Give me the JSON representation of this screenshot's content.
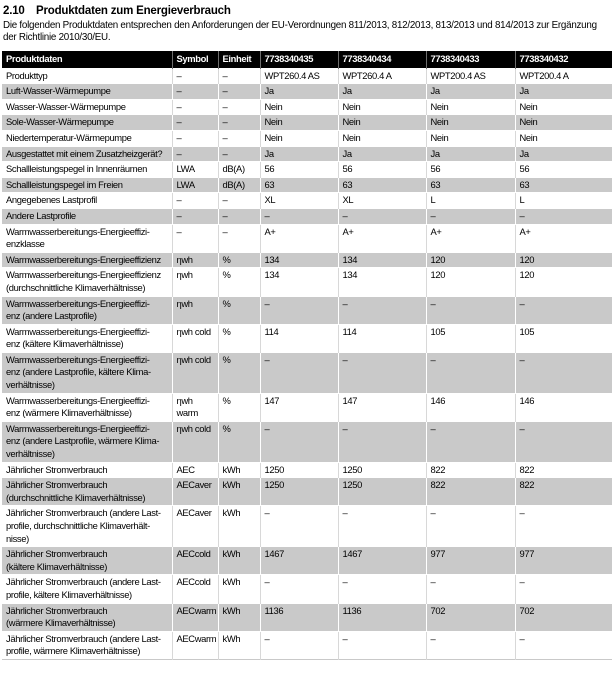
{
  "page": {
    "section_number": "2.10",
    "section_title": "Produktdaten zum Energieverbrauch",
    "intro": "Die folgenden Produktdaten entsprechen den Anforderungen der EU-Verordnungen 811/2013, 812/2013, 813/2013 und 814/2013 zur Ergänzung der Richtlinie 2010/30/EU."
  },
  "colors": {
    "header_bg": "#000000",
    "shaded_row_bg": "#c9c9c9",
    "plain_row_bg": "#ffffff",
    "text": "#000000"
  },
  "table": {
    "headers": [
      "Produktdaten",
      "Symbol",
      "Einheit",
      "7738340435",
      "7738340434",
      "7738340433",
      "7738340432"
    ],
    "rows": [
      {
        "label": "Produkttyp",
        "symbol": "–",
        "unit": "–",
        "values": [
          "WPT260.4 AS",
          "WPT260.4 A",
          "WPT200.4 AS",
          "WPT200.4 A"
        ]
      },
      {
        "label": "Luft-Wasser-Wärmepumpe",
        "symbol": "–",
        "unit": "–",
        "values": [
          "Ja",
          "Ja",
          "Ja",
          "Ja"
        ]
      },
      {
        "label": "Wasser-Wasser-Wärmepumpe",
        "symbol": "–",
        "unit": "–",
        "values": [
          "Nein",
          "Nein",
          "Nein",
          "Nein"
        ]
      },
      {
        "label": "Sole-Wasser-Wärmepumpe",
        "symbol": "–",
        "unit": "–",
        "values": [
          "Nein",
          "Nein",
          "Nein",
          "Nein"
        ]
      },
      {
        "label": "Niedertemperatur-Wärmepumpe",
        "symbol": "–",
        "unit": "–",
        "values": [
          "Nein",
          "Nein",
          "Nein",
          "Nein"
        ]
      },
      {
        "label": "Ausgestattet mit einem Zusatzheizgerät?",
        "symbol": "–",
        "unit": "–",
        "values": [
          "Ja",
          "Ja",
          "Ja",
          "Ja"
        ]
      },
      {
        "label": "Schallleistungspegel in Innenräumen",
        "symbol": "LWA",
        "unit": "dB(A)",
        "values": [
          "56",
          "56",
          "56",
          "56"
        ]
      },
      {
        "label": "Schallleistungspegel im Freien",
        "symbol": "LWA",
        "unit": "dB(A)",
        "values": [
          "63",
          "63",
          "63",
          "63"
        ]
      },
      {
        "label": "Angegebenes Lastprofil",
        "symbol": "–",
        "unit": "–",
        "values": [
          "XL",
          "XL",
          "L",
          "L"
        ]
      },
      {
        "label": "Andere Lastprofile",
        "symbol": "–",
        "unit": "–",
        "values": [
          "–",
          "–",
          "–",
          "–"
        ]
      },
      {
        "label": "Warmwasserbereitungs-Energieeffizi-\nenzklasse",
        "symbol": "–",
        "unit": "–",
        "values": [
          "A+",
          "A+",
          "A+",
          "A+"
        ]
      },
      {
        "label": "Warmwasserbereitungs-Energieeffizienz",
        "symbol": "ηwh",
        "unit": "%",
        "values": [
          "134",
          "134",
          "120",
          "120"
        ]
      },
      {
        "label": "Warmwasserbereitungs-Energieeffizienz\n(durchschnittliche Klimaverhältnisse)",
        "symbol": "ηwh",
        "unit": "%",
        "values": [
          "134",
          "134",
          "120",
          "120"
        ]
      },
      {
        "label": "Warmwasserbereitungs-Energieeffizi-\nenz (andere Lastprofile)",
        "symbol": "ηwh",
        "unit": "%",
        "values": [
          "–",
          "–",
          "–",
          "–"
        ]
      },
      {
        "label": "Warmwasserbereitungs-Energieeffizi-\nenz (kältere Klimaverhältnisse)",
        "symbol": "ηwh cold",
        "unit": "%",
        "values": [
          "114",
          "114",
          "105",
          "105"
        ]
      },
      {
        "label": "Warmwasserbereitungs-Energieeffizi-\nenz (andere Lastprofile, kältere Klima-\nverhältnisse)",
        "symbol": "ηwh cold",
        "unit": "%",
        "values": [
          "–",
          "–",
          "–",
          "–"
        ]
      },
      {
        "label": "Warmwasserbereitungs-Energieeffizi-\nenz (wärmere Klimaverhältnisse)",
        "symbol": "ηwh warm",
        "unit": "%",
        "values": [
          "147",
          "147",
          "146",
          "146"
        ]
      },
      {
        "label": "Warmwasserbereitungs-Energieeffizi-\nenz (andere Lastprofile, wärmere Klima-\nverhältnisse)",
        "symbol": "ηwh cold",
        "unit": "%",
        "values": [
          "–",
          "–",
          "–",
          "–"
        ]
      },
      {
        "label": "Jährlicher Stromverbrauch",
        "symbol": "AEC",
        "unit": "kWh",
        "values": [
          "1250",
          "1250",
          "822",
          "822"
        ]
      },
      {
        "label": "Jährlicher Stromverbrauch\n(durchschnittliche Klimaverhältnisse)",
        "symbol": "AECaver",
        "unit": "kWh",
        "values": [
          "1250",
          "1250",
          "822",
          "822"
        ]
      },
      {
        "label": "Jährlicher Stromverbrauch (andere Last-\nprofile, durchschnittliche Klimaverhält-\nnisse)",
        "symbol": "AECaver",
        "unit": "kWh",
        "values": [
          "–",
          "–",
          "–",
          "–"
        ]
      },
      {
        "label": "Jährlicher Stromverbrauch\n(kältere Klimaverhältnisse)",
        "symbol": "AECcold",
        "unit": "kWh",
        "values": [
          "1467",
          "1467",
          "977",
          "977"
        ]
      },
      {
        "label": "Jährlicher Stromverbrauch (andere Last-\nprofile, kältere Klimaverhältnisse)",
        "symbol": "AECcold",
        "unit": "kWh",
        "values": [
          "–",
          "–",
          "–",
          "–"
        ]
      },
      {
        "label": "Jährlicher Stromverbrauch\n(wärmere Klimaverhältnisse)",
        "symbol": "AECwarm",
        "unit": "kWh",
        "values": [
          "1136",
          "1136",
          "702",
          "702"
        ]
      },
      {
        "label": "Jährlicher Stromverbrauch (andere Last-\nprofile, wärmere Klimaverhältnisse)",
        "symbol": "AECwarm",
        "unit": "kWh",
        "values": [
          "–",
          "–",
          "–",
          "–"
        ]
      }
    ]
  }
}
